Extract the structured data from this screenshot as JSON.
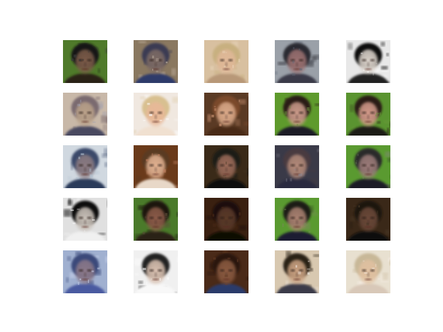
{
  "figure": {
    "background": "#ffffff",
    "rows": 5,
    "cols": 5,
    "samples": [
      {
        "icon": "face-portrait-icon",
        "bg": "#4f7a2a",
        "skin": "#7a5a48",
        "hair": "#141414",
        "shirt": "#2a2418",
        "noise": "#3a3a3a"
      },
      {
        "icon": "face-portrait-icon",
        "bg": "#8a7860",
        "skin": "#7c6a64",
        "hair": "#3a3a52",
        "shirt": "#2d3a6a",
        "noise": "#c8b8a8"
      },
      {
        "icon": "face-portrait-icon",
        "bg": "#d8c0a0",
        "skin": "#e0b898",
        "hair": "#c8b080",
        "shirt": "#b89878",
        "noise": "#f0e0c8"
      },
      {
        "icon": "face-portrait-icon",
        "bg": "#9aa0a8",
        "skin": "#9a7070",
        "hair": "#2a2a30",
        "shirt": "#3a3a48",
        "noise": "#606878"
      },
      {
        "icon": "face-portrait-icon",
        "bg": "#e8e8e8",
        "skin": "#d8d0c8",
        "hair": "#101010",
        "shirt": "#202020",
        "noise": "#ffffff"
      },
      {
        "icon": "face-portrait-icon",
        "bg": "#c8b8a8",
        "skin": "#b8a088",
        "hair": "#7a6a70",
        "shirt": "#4a4a60",
        "noise": "#a0a0b0"
      },
      {
        "icon": "face-portrait-icon",
        "bg": "#f0e8e0",
        "skin": "#e8b898",
        "hair": "#d8c090",
        "shirt": "#f0e0d0",
        "noise": "#ffffff"
      },
      {
        "icon": "face-portrait-icon",
        "bg": "#5a3a24",
        "skin": "#d8a888",
        "hair": "#7a4a2a",
        "shirt": "#4a2a18",
        "noise": "#c89070"
      },
      {
        "icon": "face-portrait-icon",
        "bg": "#5e9a2c",
        "skin": "#c89888",
        "hair": "#2a1a14",
        "shirt": "#1a1a28",
        "noise": "#6a8a3a"
      },
      {
        "icon": "face-portrait-icon",
        "bg": "#5a9430",
        "skin": "#d09888",
        "hair": "#2a1a14",
        "shirt": "#1a1a18",
        "noise": "#6a9a3a"
      },
      {
        "icon": "face-portrait-icon",
        "bg": "#d0d8e0",
        "skin": "#8a7a80",
        "hair": "#3a4a6a",
        "shirt": "#2a3a5a",
        "noise": "#b0c0d0"
      },
      {
        "icon": "face-portrait-icon",
        "bg": "#6a3a1a",
        "skin": "#e0b090",
        "hair": "#5a3a20",
        "shirt": "#e8d8c8",
        "noise": "#c08060"
      },
      {
        "icon": "face-portrait-icon",
        "bg": "#3a2a18",
        "skin": "#9a6a58",
        "hair": "#1a1a14",
        "shirt": "#101010",
        "noise": "#4a3a28"
      },
      {
        "icon": "face-portrait-icon",
        "bg": "#3a3a48",
        "skin": "#b08878",
        "hair": "#4a3a40",
        "shirt": "#2a2a40",
        "noise": "#8a8a98"
      },
      {
        "icon": "face-portrait-icon",
        "bg": "#5a9a30",
        "skin": "#9a7a78",
        "hair": "#2a2a2a",
        "shirt": "#1a1a28",
        "noise": "#7a8a6a"
      },
      {
        "icon": "face-portrait-icon",
        "bg": "#e0e0e0",
        "skin": "#c8c0b8",
        "hair": "#101010",
        "shirt": "#f0f0f0",
        "noise": "#ffffff"
      },
      {
        "icon": "face-portrait-icon",
        "bg": "#4a7a2a",
        "skin": "#8a5a48",
        "hair": "#1a1410",
        "shirt": "#2a2018",
        "noise": "#5a4a38"
      },
      {
        "icon": "face-portrait-icon",
        "bg": "#3a2010",
        "skin": "#5a3a28",
        "hair": "#1a1008",
        "shirt": "#100804",
        "noise": "#4a2a18"
      },
      {
        "icon": "face-portrait-icon",
        "bg": "#5a9a30",
        "skin": "#a88070",
        "hair": "#1a1a18",
        "shirt": "#1a1a30",
        "noise": "#7a8a5a"
      },
      {
        "icon": "face-portrait-icon",
        "bg": "#3a2818",
        "skin": "#6a4838",
        "hair": "#1a1410",
        "shirt": "#101010",
        "noise": "#4a3828"
      },
      {
        "icon": "face-portrait-icon",
        "bg": "#a0b0d0",
        "skin": "#8a7888",
        "hair": "#3a4a7a",
        "shirt": "#4a5aa0",
        "noise": "#d0d8f0"
      },
      {
        "icon": "face-portrait-icon",
        "bg": "#f0f0f0",
        "skin": "#d8c0b0",
        "hair": "#202020",
        "shirt": "#f8f8f8",
        "noise": "#ffffff"
      },
      {
        "icon": "face-portrait-icon",
        "bg": "#4a2a18",
        "skin": "#8a5a40",
        "hair": "#2a1810",
        "shirt": "#2a3a6a",
        "noise": "#6a4028"
      },
      {
        "icon": "face-portrait-icon",
        "bg": "#d8c8b0",
        "skin": "#c8a080",
        "hair": "#2a2018",
        "shirt": "#3a3a48",
        "noise": "#f0e8e0"
      },
      {
        "icon": "face-portrait-icon",
        "bg": "#e8e0d0",
        "skin": "#e0c0a0",
        "hair": "#c8b898",
        "shirt": "#d8c8b8",
        "noise": "#f8f0e8"
      }
    ]
  }
}
